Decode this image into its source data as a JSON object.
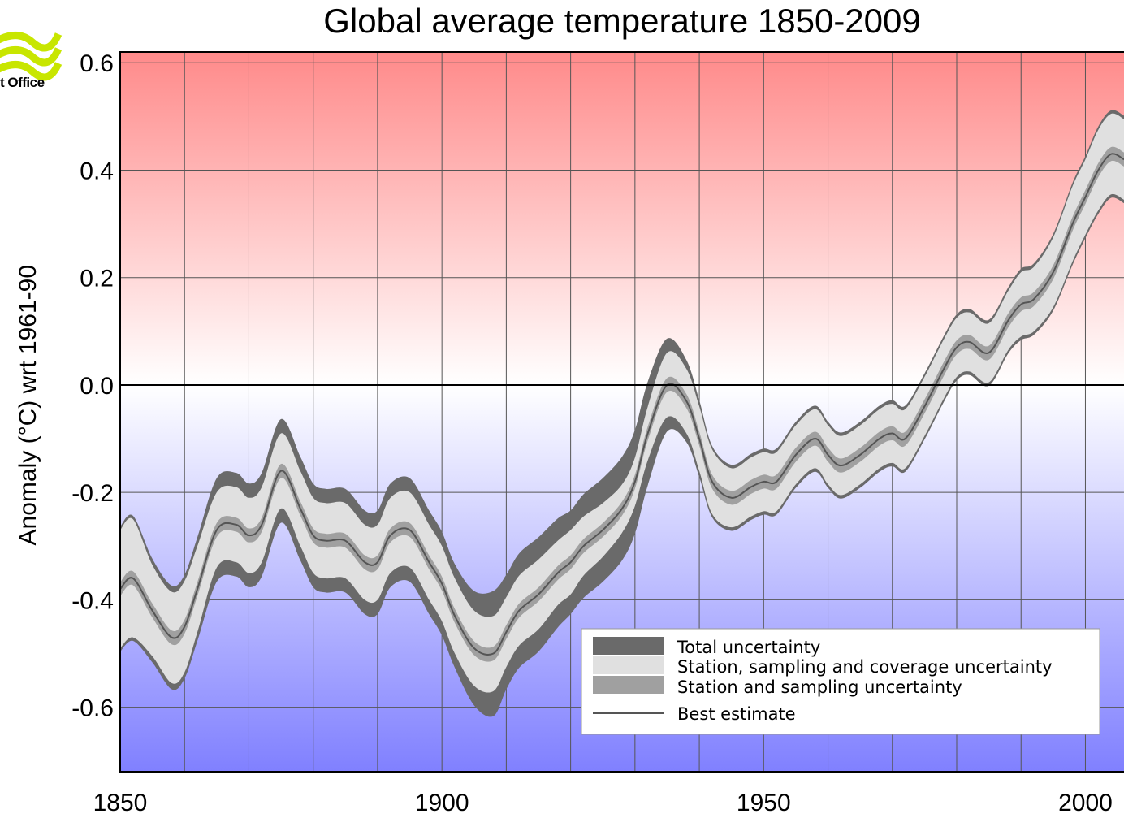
{
  "brand": {
    "logo_text": "t Office",
    "logo_color": "#c8e600"
  },
  "chart_data": {
    "type": "area",
    "title": "Global average temperature 1850-2009",
    "xlabel": "",
    "ylabel": "Anomaly (°C) wrt 1961-90",
    "xlim": [
      1850,
      2006
    ],
    "ylim": [
      -0.72,
      0.62
    ],
    "x_ticks": [
      1850,
      1900,
      1950,
      2000
    ],
    "y_ticks": [
      0.6,
      0.4,
      0.2,
      0.0,
      -0.2,
      -0.4,
      -0.6
    ],
    "y_tick_labels": [
      "0.6",
      "0.4",
      "0.2",
      "0.0",
      "-0.2",
      "-0.4",
      "-0.6"
    ],
    "grid": true,
    "x_grid_step": 10,
    "y_grid_step": 0.2,
    "background": {
      "top_color": "#ff8a8a",
      "zero_color": "#ffffff",
      "bottom_color": "#8080ff"
    },
    "legend_position": "bottom-right",
    "x": [
      1850,
      1852,
      1855,
      1858,
      1860,
      1862,
      1865,
      1868,
      1870,
      1872,
      1875,
      1878,
      1880,
      1882,
      1885,
      1888,
      1890,
      1892,
      1895,
      1898,
      1900,
      1902,
      1905,
      1908,
      1910,
      1912,
      1915,
      1918,
      1920,
      1922,
      1925,
      1928,
      1930,
      1932,
      1935,
      1938,
      1940,
      1942,
      1945,
      1948,
      1950,
      1952,
      1955,
      1958,
      1960,
      1962,
      1965,
      1968,
      1970,
      1972,
      1975,
      1978,
      1980,
      1982,
      1985,
      1988,
      1990,
      1992,
      1995,
      1998,
      2000,
      2002,
      2004,
      2006
    ],
    "series": [
      {
        "name": "Best estimate",
        "values": [
          -0.38,
          -0.36,
          -0.42,
          -0.47,
          -0.45,
          -0.38,
          -0.27,
          -0.26,
          -0.28,
          -0.26,
          -0.16,
          -0.23,
          -0.28,
          -0.29,
          -0.29,
          -0.33,
          -0.33,
          -0.28,
          -0.27,
          -0.33,
          -0.37,
          -0.43,
          -0.49,
          -0.5,
          -0.46,
          -0.42,
          -0.39,
          -0.35,
          -0.33,
          -0.3,
          -0.27,
          -0.23,
          -0.18,
          -0.09,
          0.0,
          -0.03,
          -0.1,
          -0.18,
          -0.21,
          -0.19,
          -0.18,
          -0.18,
          -0.13,
          -0.1,
          -0.13,
          -0.15,
          -0.13,
          -0.1,
          -0.09,
          -0.1,
          -0.04,
          0.03,
          0.07,
          0.08,
          0.06,
          0.12,
          0.15,
          0.16,
          0.21,
          0.3,
          0.35,
          0.4,
          0.43,
          0.42
        ]
      },
      {
        "name": "Station and sampling uncertainty",
        "half_width": 0.013
      },
      {
        "name": "Station, sampling and coverage uncertainty",
        "half_width": [
          0.11,
          0.11,
          0.085,
          0.085,
          0.085,
          0.08,
          0.07,
          0.07,
          0.07,
          0.07,
          0.07,
          0.07,
          0.07,
          0.07,
          0.07,
          0.07,
          0.07,
          0.07,
          0.07,
          0.07,
          0.07,
          0.07,
          0.07,
          0.07,
          0.065,
          0.065,
          0.065,
          0.06,
          0.06,
          0.055,
          0.05,
          0.045,
          0.045,
          0.05,
          0.06,
          0.06,
          0.06,
          0.06,
          0.055,
          0.055,
          0.055,
          0.055,
          0.055,
          0.055,
          0.055,
          0.055,
          0.055,
          0.055,
          0.055,
          0.055,
          0.055,
          0.055,
          0.055,
          0.055,
          0.055,
          0.055,
          0.06,
          0.06,
          0.065,
          0.07,
          0.07,
          0.075,
          0.075,
          0.075
        ]
      },
      {
        "name": "Total uncertainty",
        "half_width": [
          0.11,
          0.11,
          0.09,
          0.09,
          0.09,
          0.09,
          0.09,
          0.09,
          0.09,
          0.09,
          0.09,
          0.09,
          0.09,
          0.09,
          0.09,
          0.09,
          0.09,
          0.09,
          0.09,
          0.09,
          0.09,
          0.09,
          0.1,
          0.11,
          0.1,
          0.1,
          0.1,
          0.095,
          0.09,
          0.09,
          0.09,
          0.09,
          0.09,
          0.09,
          0.08,
          0.07,
          0.065,
          0.06,
          0.055,
          0.055,
          0.055,
          0.055,
          0.055,
          0.055,
          0.055,
          0.055,
          0.055,
          0.055,
          0.055,
          0.055,
          0.055,
          0.055,
          0.055,
          0.055,
          0.055,
          0.055,
          0.06,
          0.06,
          0.065,
          0.07,
          0.07,
          0.075,
          0.075,
          0.075
        ]
      }
    ],
    "legend": [
      {
        "label": "Total uncertainty",
        "color": "#6a6a6a",
        "kind": "band"
      },
      {
        "label": "Station, sampling and coverage uncertainty",
        "color": "#e0e0e0",
        "kind": "band"
      },
      {
        "label": "Station and sampling uncertainty",
        "color": "#a0a0a0",
        "kind": "band"
      },
      {
        "label": "Best estimate",
        "color": "#555555",
        "kind": "line"
      }
    ]
  }
}
